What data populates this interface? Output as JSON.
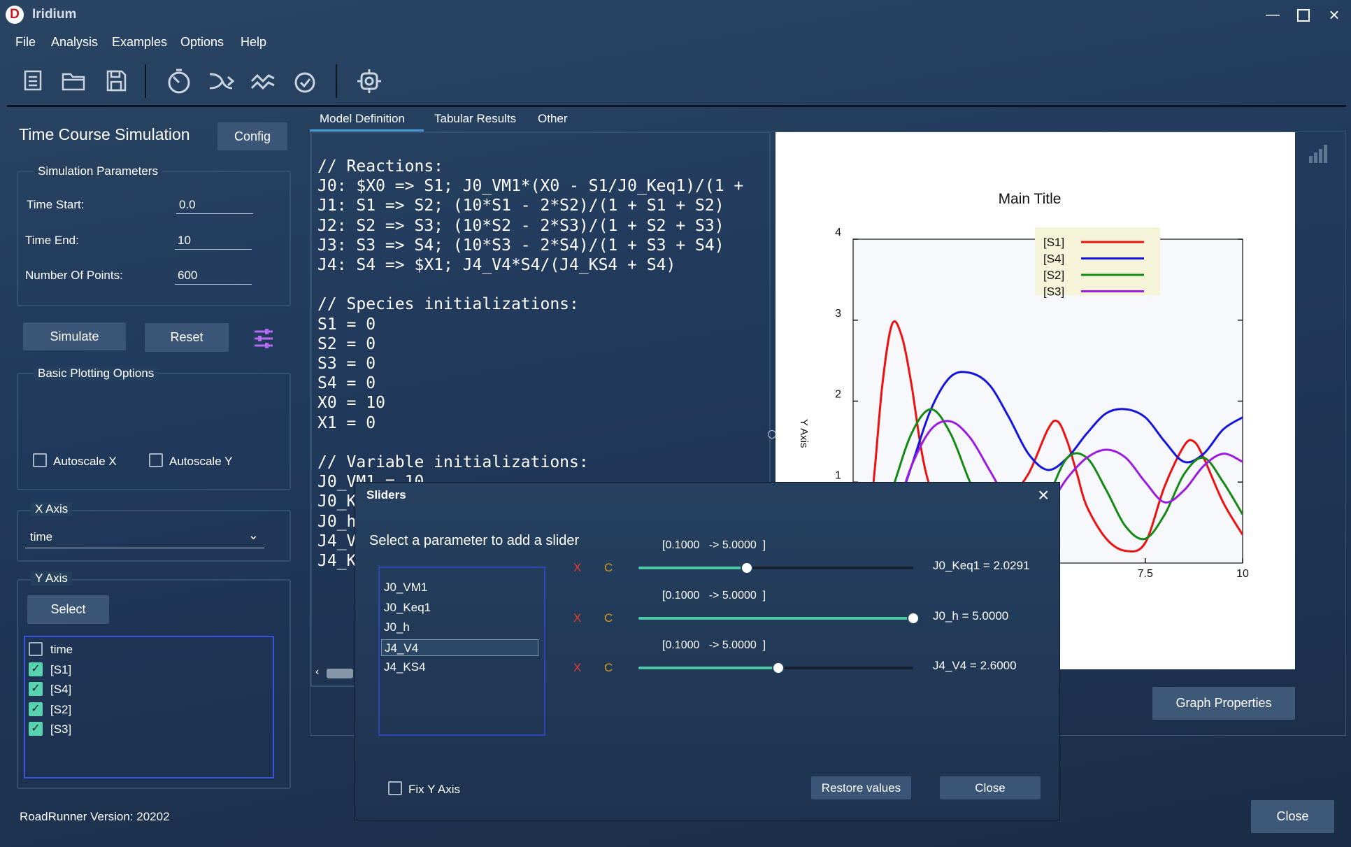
{
  "app": {
    "title": "Iridium",
    "logo": "D"
  },
  "menu": [
    "File",
    "Analysis",
    "Examples",
    "Options",
    "Help"
  ],
  "toolbar": {
    "icons": [
      "new-document-icon",
      "open-folder-icon",
      "save-icon",
      "time-course-icon",
      "steady-state-icon",
      "parameter-scan-icon",
      "timer-icon",
      "settings-icon"
    ]
  },
  "left": {
    "title": "Time Course Simulation",
    "config_label": "Config",
    "sim_params": {
      "label": "Simulation Parameters",
      "time_start_label": "Time Start:",
      "time_start": "0.0",
      "time_end_label": "Time End:",
      "time_end": "10",
      "points_label": "Number Of Points:",
      "points": "600"
    },
    "simulate_label": "Simulate",
    "reset_label": "Reset",
    "basic_plot": {
      "label": "Basic Plotting Options",
      "autoscale_x": "Autoscale X",
      "autoscale_y": "Autoscale Y"
    },
    "x_axis": {
      "label": "X Axis",
      "value": "time"
    },
    "y_axis": {
      "label": "Y Axis",
      "select_label": "Select",
      "items": [
        {
          "label": "time",
          "checked": false
        },
        {
          "label": "[S1]",
          "checked": true
        },
        {
          "label": "[S4]",
          "checked": true
        },
        {
          "label": "[S2]",
          "checked": true
        },
        {
          "label": "[S3]",
          "checked": true
        }
      ]
    },
    "version": "RoadRunner Version: 20202"
  },
  "tabs": [
    "Model Definition",
    "Tabular Results",
    "Other"
  ],
  "editor": {
    "lines": [
      "// Reactions:",
      "J0: $X0 => S1; J0_VM1*(X0 - S1/J0_Keq1)/(1 +",
      "J1: S1 => S2; (10*S1 - 2*S2)/(1 + S1 + S2)",
      "J2: S2 => S3; (10*S2 - 2*S3)/(1 + S2 + S3)",
      "J3: S3 => S4; (10*S3 - 2*S4)/(1 + S3 + S4)",
      "J4: S4 => $X1; J4_V4*S4/(J4_KS4 + S4)",
      "",
      "// Species initializations:",
      "S1 = 0",
      "S2 = 0",
      "S3 = 0",
      "S4 = 0",
      "X0 = 10",
      "X1 = 0",
      "",
      "// Variable initializations:",
      "J0_VM1 = 10",
      "J0_K",
      "J0_h",
      "J4_V",
      "J4_K"
    ]
  },
  "chart_data": {
    "type": "line",
    "title": "Main Title",
    "xlabel": "",
    "ylabel": "Y Axis",
    "xlim": [
      0,
      10
    ],
    "ylim": [
      0,
      4
    ],
    "legend_position": "top-right",
    "x_ticks": [
      "7.5",
      "10"
    ],
    "y_ticks": [
      "1",
      "2",
      "3",
      "4"
    ],
    "series": [
      {
        "name": "[S1]",
        "color": "#ee1111",
        "x": [
          0.0,
          0.25,
          0.5,
          0.75,
          1.0,
          1.25,
          1.5,
          1.75,
          2.0,
          2.5,
          3.0,
          3.5,
          4.0,
          4.5,
          5.0,
          5.25,
          5.5,
          5.75,
          6.0,
          6.5,
          7.0,
          7.5,
          8.0,
          8.5,
          8.75,
          9.0,
          9.5,
          10.0
        ],
        "y": [
          0.0,
          0.3,
          0.9,
          2.2,
          2.95,
          2.8,
          2.2,
          1.4,
          0.9,
          0.3,
          0.3,
          0.5,
          0.8,
          1.1,
          1.65,
          1.75,
          1.5,
          1.1,
          0.7,
          0.3,
          0.15,
          0.25,
          0.95,
          1.45,
          1.5,
          1.3,
          0.75,
          0.35
        ]
      },
      {
        "name": "[S4]",
        "color": "#1515dd",
        "x": [
          0.0,
          0.5,
          1.0,
          1.5,
          2.0,
          2.5,
          3.0,
          3.5,
          4.0,
          4.5,
          5.0,
          5.5,
          6.0,
          6.5,
          7.0,
          7.5,
          8.0,
          8.5,
          9.0,
          9.5,
          10.0
        ],
        "y": [
          0.0,
          0.1,
          0.5,
          1.2,
          1.9,
          2.3,
          2.35,
          2.2,
          1.8,
          1.35,
          1.15,
          1.3,
          1.6,
          1.85,
          1.9,
          1.8,
          1.5,
          1.25,
          1.35,
          1.65,
          1.8
        ]
      },
      {
        "name": "[S2]",
        "color": "#148a14",
        "x": [
          0.0,
          0.5,
          1.0,
          1.5,
          2.0,
          2.5,
          3.0,
          3.5,
          4.0,
          4.5,
          5.0,
          5.5,
          6.0,
          6.5,
          7.0,
          7.5,
          8.0,
          8.5,
          9.0,
          9.5,
          10.0
        ],
        "y": [
          0.0,
          0.2,
          0.9,
          1.6,
          1.9,
          1.6,
          1.0,
          0.5,
          0.25,
          0.3,
          0.8,
          1.3,
          1.3,
          0.9,
          0.45,
          0.3,
          0.6,
          1.1,
          1.3,
          1.0,
          0.6
        ]
      },
      {
        "name": "[S3]",
        "color": "#9b1be0",
        "x": [
          0.0,
          0.5,
          1.0,
          1.5,
          2.0,
          2.5,
          3.0,
          3.5,
          4.0,
          4.5,
          5.0,
          5.5,
          6.0,
          6.5,
          7.0,
          7.5,
          8.0,
          8.5,
          9.0,
          9.5,
          10.0
        ],
        "y": [
          0.0,
          0.1,
          0.5,
          1.2,
          1.65,
          1.75,
          1.55,
          1.15,
          0.75,
          0.55,
          0.7,
          1.05,
          1.3,
          1.4,
          1.3,
          1.0,
          0.75,
          0.9,
          1.2,
          1.35,
          1.25
        ]
      }
    ]
  },
  "graph_properties_label": "Graph Properties",
  "close_label": "Close",
  "sliders_dialog": {
    "title": "Sliders",
    "instruction": "Select a parameter to add a slider",
    "params": [
      "J0_VM1",
      "J0_Keq1",
      "J0_h",
      "J4_V4",
      "J4_KS4"
    ],
    "selected_param": "J4_V4",
    "sliders": [
      {
        "range": "[0.1000   -> 5.0000  ]",
        "value_text": "J0_Keq1 = 2.0291",
        "fraction": 0.395,
        "x_label": "X",
        "c_label": "C"
      },
      {
        "range": "[0.1000   -> 5.0000  ]",
        "value_text": "J0_h = 5.0000",
        "fraction": 1.0,
        "x_label": "X",
        "c_label": "C"
      },
      {
        "range": "[0.1000   -> 5.0000  ]",
        "value_text": "J4_V4 = 2.6000",
        "fraction": 0.51,
        "x_label": "X",
        "c_label": "C"
      }
    ],
    "fix_y_label": "Fix Y Axis",
    "restore_label": "Restore values",
    "close_label": "Close"
  }
}
